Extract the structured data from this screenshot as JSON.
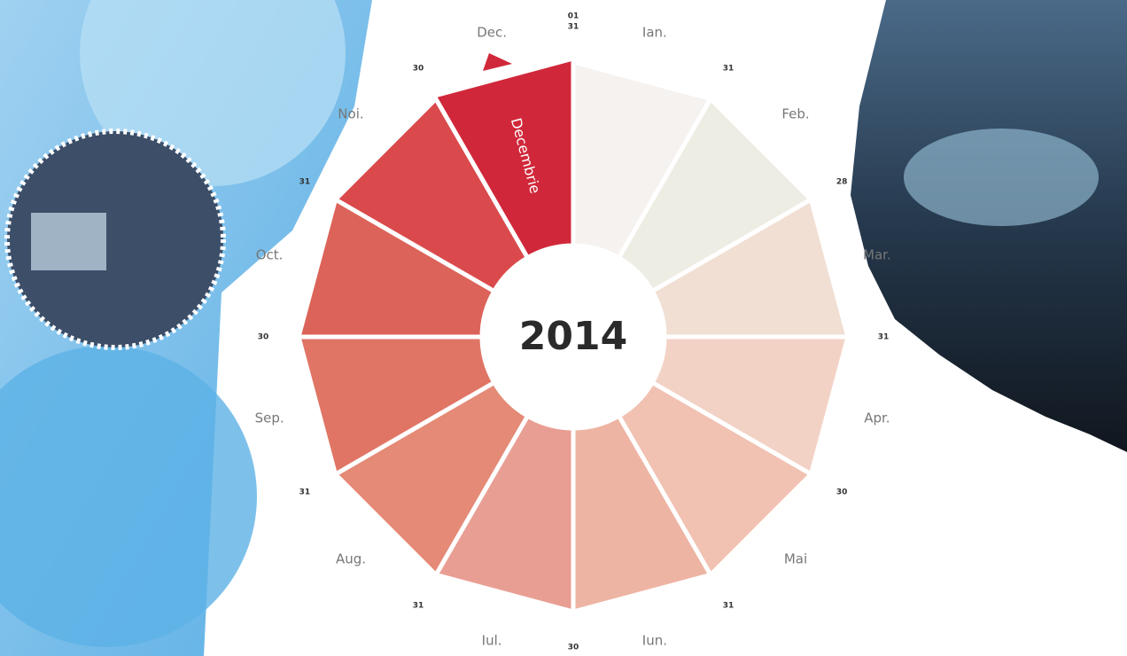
{
  "center_label": "2014",
  "start_day": "01",
  "highlight_label": "Decembrie",
  "months": [
    {
      "name": "Ian.",
      "days": "31",
      "color": "#f6f2ef"
    },
    {
      "name": "Feb.",
      "days": "28",
      "color": "#eeede4"
    },
    {
      "name": "Mar.",
      "days": "31",
      "color": "#f1dfd4"
    },
    {
      "name": "Apr.",
      "days": "30",
      "color": "#f3d2c6"
    },
    {
      "name": "Mai",
      "days": "31",
      "color": "#f1c1b2"
    },
    {
      "name": "Iun.",
      "days": "30",
      "color": "#eeb4a3"
    },
    {
      "name": "Iul.",
      "days": "31",
      "color": "#e99e93"
    },
    {
      "name": "Aug.",
      "days": "31",
      "color": "#e48a76"
    },
    {
      "name": "Sep.",
      "days": "30",
      "color": "#e07565"
    },
    {
      "name": "Oct.",
      "days": "31",
      "color": "#dc6359"
    },
    {
      "name": "Noi.",
      "days": "30",
      "color": "#da4a4c"
    },
    {
      "name": "Dec.",
      "days": "31",
      "color": "#d0283a"
    }
  ]
}
